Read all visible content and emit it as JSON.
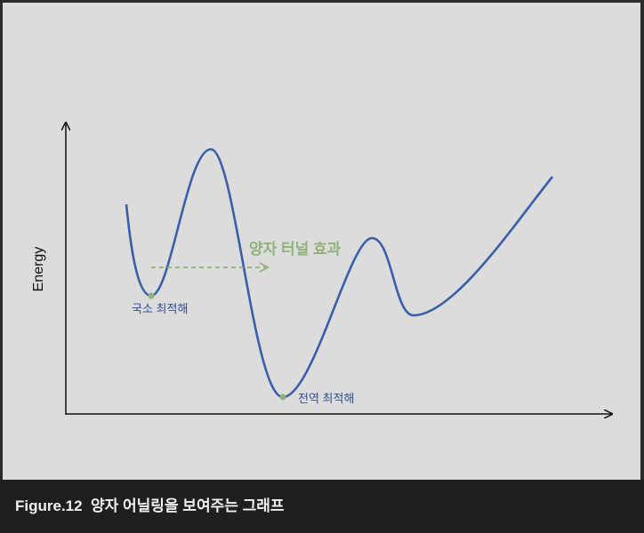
{
  "diagram": {
    "y_axis_label": "Energy",
    "tunneling_label": "양자 터널 효과",
    "local_min_label": "국소 최적해",
    "global_min_label": "전역 최적해"
  },
  "caption": "Figure.12  양자 어닐링을 보여주는 그래프"
}
